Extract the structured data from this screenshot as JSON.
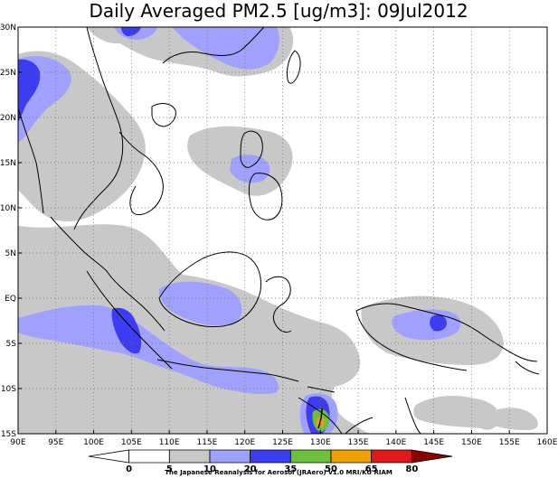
{
  "title": "Daily Averaged PM2.5 [ug/m3]: 09Jul2012",
  "credit": "The Japanese Reanalysis for Aerosol (JRAero) v1.0 MRI/KU RIAM",
  "map": {
    "lon_range": [
      90,
      160
    ],
    "lat_range": [
      -15,
      30
    ],
    "x_ticks": [
      "90E",
      "95E",
      "100E",
      "105E",
      "110E",
      "115E",
      "120E",
      "125E",
      "130E",
      "135E",
      "140E",
      "145E",
      "150E",
      "155E",
      "160E"
    ],
    "y_ticks": [
      "30N",
      "25N",
      "20N",
      "15N",
      "10N",
      "5N",
      "EQ",
      "5S",
      "10S",
      "15S"
    ],
    "grid": true,
    "grid_style": "dotted",
    "plume_center": {
      "lon": 130.3,
      "lat": -13.4
    },
    "plume_max_class": "35-50"
  },
  "colorbar": {
    "levels": [
      "0",
      "5",
      "10",
      "20",
      "35",
      "50",
      "65",
      "80"
    ],
    "colors": [
      "#ffffff",
      "#ffffff",
      "#c8c8c8",
      "#a0a0ff",
      "#3c3cf0",
      "#6cc03c",
      "#f0a000",
      "#e01a1a",
      "#8c0000"
    ]
  }
}
